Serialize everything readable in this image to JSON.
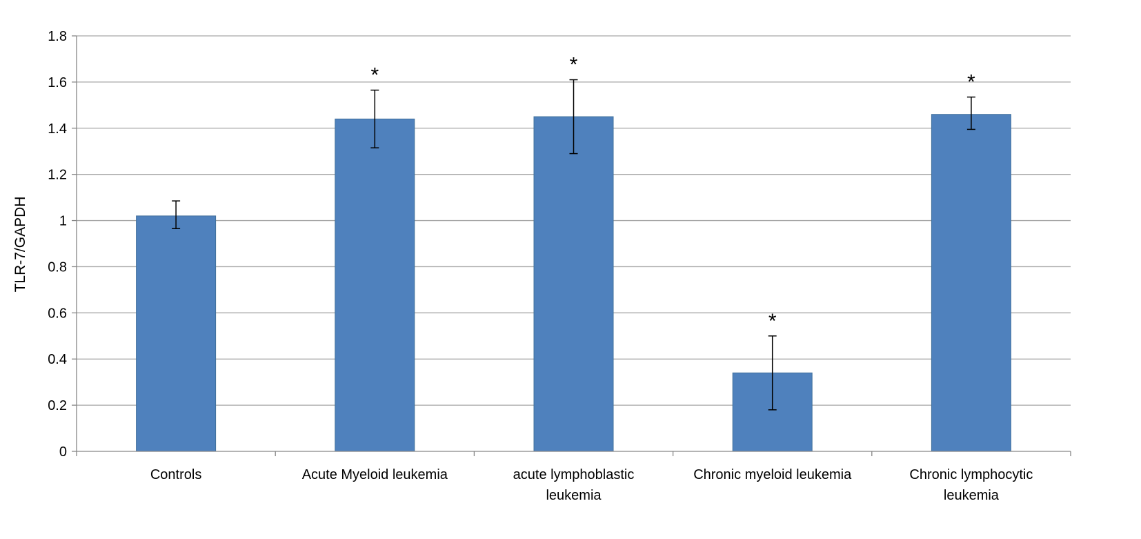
{
  "chart_data": {
    "type": "bar",
    "title": "",
    "xlabel": "",
    "ylabel": "TLR-7/GAPDH",
    "ylim": [
      0,
      1.8
    ],
    "yticks": [
      0,
      0.2,
      0.4,
      0.6,
      0.8,
      1,
      1.2,
      1.4,
      1.6,
      1.8
    ],
    "ytick_labels": [
      "0",
      "0.2",
      "0.4",
      "0.6",
      "0.8",
      "1",
      "1.2",
      "1.4",
      "1.6",
      "1.8"
    ],
    "grid": true,
    "legend": "none",
    "categories": [
      "Controls",
      "Acute Myeloid leukemia",
      "acute lymphoblastic leukemia",
      "Chronic myeloid leukemia",
      "Chronic lymphocytic leukemia"
    ],
    "category_label_lines": [
      [
        "Controls"
      ],
      [
        "Acute Myeloid leukemia"
      ],
      [
        "acute lymphoblastic",
        "leukemia"
      ],
      [
        "Chronic myeloid leukemia"
      ],
      [
        "Chronic lymphocytic",
        "leukemia"
      ]
    ],
    "values": [
      1.02,
      1.44,
      1.45,
      0.34,
      1.46
    ],
    "error_low": [
      0.965,
      1.315,
      1.29,
      0.18,
      1.395
    ],
    "error_high": [
      1.085,
      1.565,
      1.61,
      0.5,
      1.535
    ],
    "significance_marks": [
      "",
      "*",
      "*",
      "*",
      "*"
    ],
    "colors": {
      "bar": "#4f81bd",
      "bar_edge": "#41719c",
      "grid": "#a6a6a6",
      "axis": "#868686"
    }
  }
}
